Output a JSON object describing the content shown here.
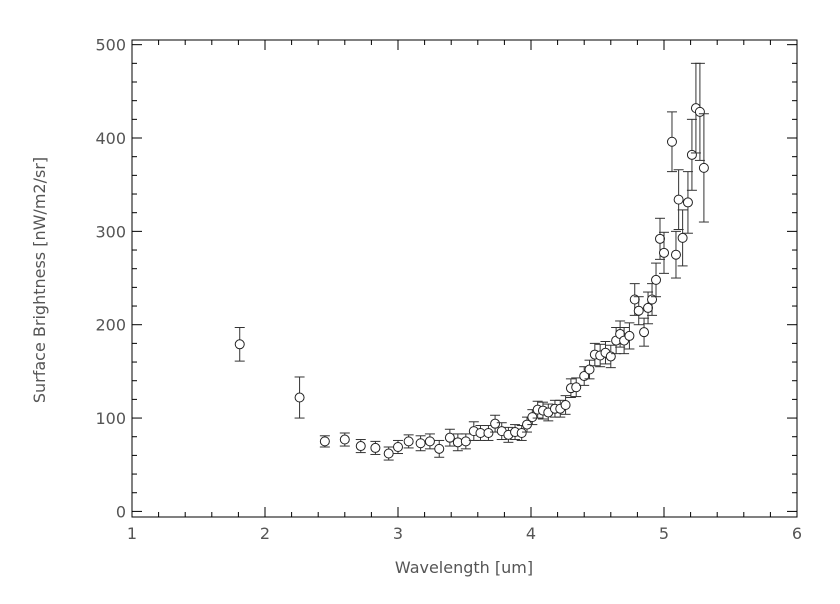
{
  "chart_data": {
    "type": "scatter",
    "title": "",
    "xlabel": "Wavelength [um]",
    "ylabel": "Surface Brightness [nW/m2/sr]",
    "xlim": [
      1,
      6
    ],
    "ylim": [
      -6,
      505
    ],
    "xticks": [
      "1",
      "2",
      "3",
      "4",
      "5",
      "6"
    ],
    "yticks": [
      "0",
      "100",
      "200",
      "300",
      "400",
      "500"
    ],
    "grid": false,
    "marker": "open-circle",
    "error_bars": true,
    "colors": {
      "marker": "#222222",
      "axis": "#000000",
      "text": "#555555"
    },
    "points": [
      [
        1.81,
        179,
        18
      ],
      [
        2.26,
        122,
        22
      ],
      [
        2.45,
        75,
        6
      ],
      [
        2.6,
        77,
        7
      ],
      [
        2.72,
        70,
        7
      ],
      [
        2.83,
        68,
        7
      ],
      [
        2.93,
        62,
        7
      ],
      [
        3.0,
        69,
        7
      ],
      [
        3.08,
        75,
        7
      ],
      [
        3.17,
        73,
        8
      ],
      [
        3.24,
        75,
        8
      ],
      [
        3.31,
        67,
        9
      ],
      [
        3.39,
        79,
        9
      ],
      [
        3.45,
        74,
        9
      ],
      [
        3.51,
        75,
        8
      ],
      [
        3.57,
        86,
        10
      ],
      [
        3.62,
        84,
        8
      ],
      [
        3.68,
        84,
        8
      ],
      [
        3.73,
        94,
        9
      ],
      [
        3.78,
        86,
        9
      ],
      [
        3.83,
        82,
        8
      ],
      [
        3.88,
        85,
        8
      ],
      [
        3.93,
        84,
        8
      ],
      [
        3.97,
        93,
        8
      ],
      [
        4.01,
        101,
        8
      ],
      [
        4.05,
        109,
        9
      ],
      [
        4.09,
        108,
        9
      ],
      [
        4.13,
        106,
        9
      ],
      [
        4.18,
        110,
        9
      ],
      [
        4.22,
        110,
        9
      ],
      [
        4.26,
        114,
        10
      ],
      [
        4.3,
        132,
        10
      ],
      [
        4.34,
        133,
        10
      ],
      [
        4.4,
        145,
        10
      ],
      [
        4.44,
        152,
        10
      ],
      [
        4.48,
        168,
        12
      ],
      [
        4.52,
        167,
        12
      ],
      [
        4.56,
        170,
        12
      ],
      [
        4.6,
        166,
        12
      ],
      [
        4.64,
        183,
        14
      ],
      [
        4.67,
        190,
        14
      ],
      [
        4.7,
        183,
        14
      ],
      [
        4.74,
        188,
        14
      ],
      [
        4.78,
        227,
        17
      ],
      [
        4.81,
        215,
        15
      ],
      [
        4.85,
        192,
        15
      ],
      [
        4.88,
        218,
        17
      ],
      [
        4.91,
        227,
        17
      ],
      [
        4.94,
        248,
        18
      ],
      [
        4.97,
        292,
        22
      ],
      [
        5.0,
        277,
        22
      ],
      [
        5.06,
        396,
        32
      ],
      [
        5.09,
        275,
        25
      ],
      [
        5.11,
        334,
        32
      ],
      [
        5.14,
        293,
        30
      ],
      [
        5.18,
        331,
        33
      ],
      [
        5.21,
        382,
        38
      ],
      [
        5.24,
        432,
        48
      ],
      [
        5.27,
        428,
        52
      ],
      [
        5.3,
        368,
        58
      ]
    ],
    "point_fields": [
      "wavelength_um",
      "surface_brightness",
      "error"
    ]
  }
}
